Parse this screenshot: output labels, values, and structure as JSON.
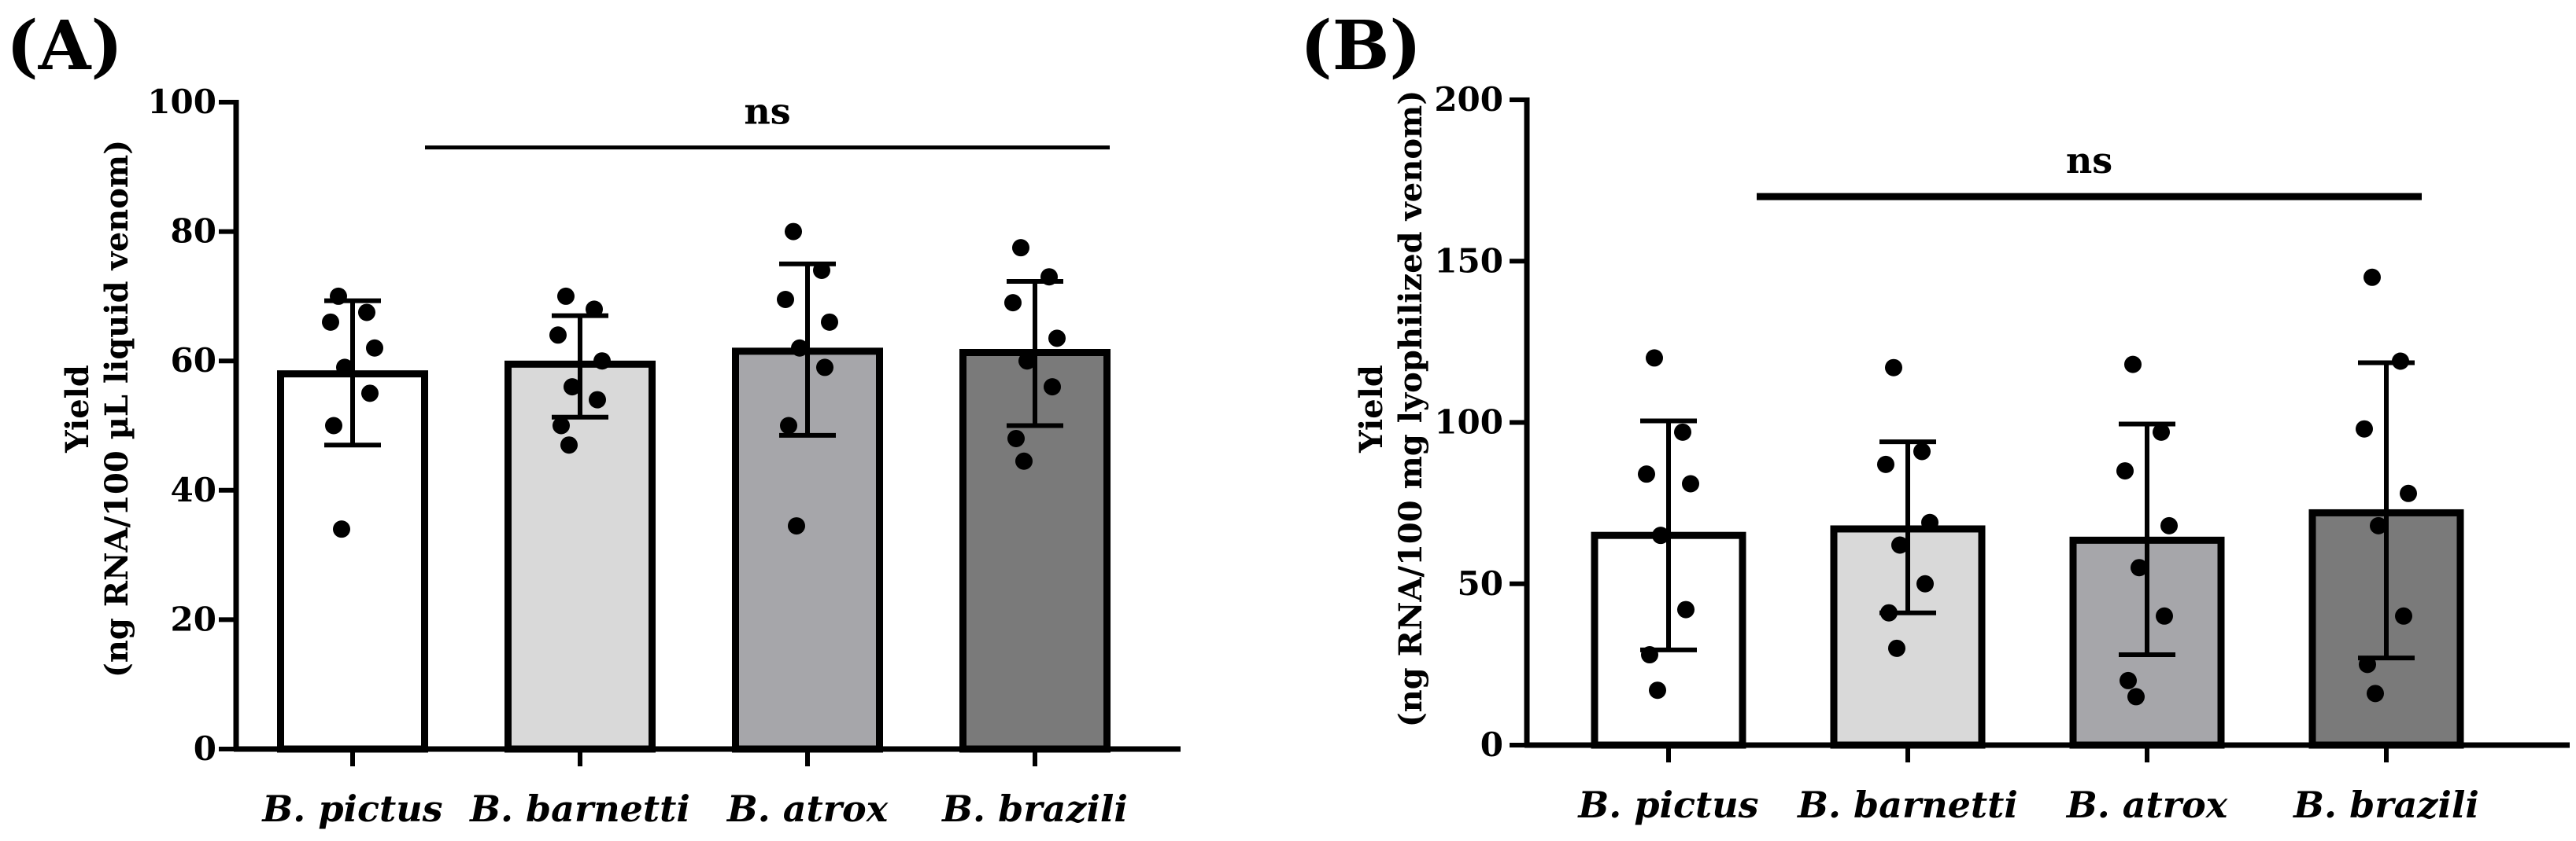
{
  "chart_data": [
    {
      "panel_label": "(A)",
      "type": "bar",
      "categories": [
        "B. pictus",
        "B. barnetti",
        "B. atrox",
        "B. brazili"
      ],
      "bar_colors": [
        "#ffffff",
        "#d9d9d9",
        "#a6a6aa",
        "#7a7a7a"
      ],
      "values": [
        58,
        59.5,
        61.5,
        61.3
      ],
      "error_low": [
        47,
        51.3,
        48.5,
        50
      ],
      "error_high": [
        69.3,
        67,
        75,
        72.3
      ],
      "points": [
        [
          70,
          67.5,
          66,
          62,
          59,
          55,
          50,
          34
        ],
        [
          70,
          68,
          64,
          60,
          56,
          54,
          50,
          47
        ],
        [
          80,
          74,
          69.5,
          66,
          62,
          59,
          50,
          34.5
        ],
        [
          77.5,
          73,
          69,
          63.5,
          60,
          56,
          48,
          44.5
        ]
      ],
      "ylim": [
        0,
        100
      ],
      "yticks": [
        "0",
        "20",
        "40",
        "60",
        "80",
        "100"
      ],
      "ylabel_line1": "Yield",
      "ylabel_line2": "(ng RNA/100 µL liquid venom)",
      "significance": "ns",
      "significance_level": 93
    },
    {
      "panel_label": "(B)",
      "type": "bar",
      "categories": [
        "B. pictus",
        "B. barnetti",
        "B. atrox",
        "B. brazili"
      ],
      "bar_colors": [
        "#ffffff",
        "#d9d9d9",
        "#a6a6aa",
        "#7a7a7a"
      ],
      "values": [
        65,
        67,
        63.5,
        72
      ],
      "error_low": [
        29.5,
        41,
        28,
        27
      ],
      "error_high": [
        100.5,
        94,
        99.5,
        118.5
      ],
      "points": [
        [
          120,
          97,
          84,
          81,
          65,
          42,
          28,
          17
        ],
        [
          117,
          91,
          87,
          69,
          62,
          50,
          41,
          30
        ],
        [
          118,
          97,
          85,
          68,
          55,
          40,
          20,
          15
        ],
        [
          145,
          119,
          98,
          78,
          68,
          40,
          25,
          16
        ]
      ],
      "ylim": [
        0,
        200
      ],
      "yticks": [
        "0",
        "50",
        "100",
        "150",
        "200"
      ],
      "ylabel_line1": "Yield",
      "ylabel_line2": "(ng RNA/100 mg lyophilized venom)",
      "significance": "ns",
      "significance_level": 170
    }
  ]
}
